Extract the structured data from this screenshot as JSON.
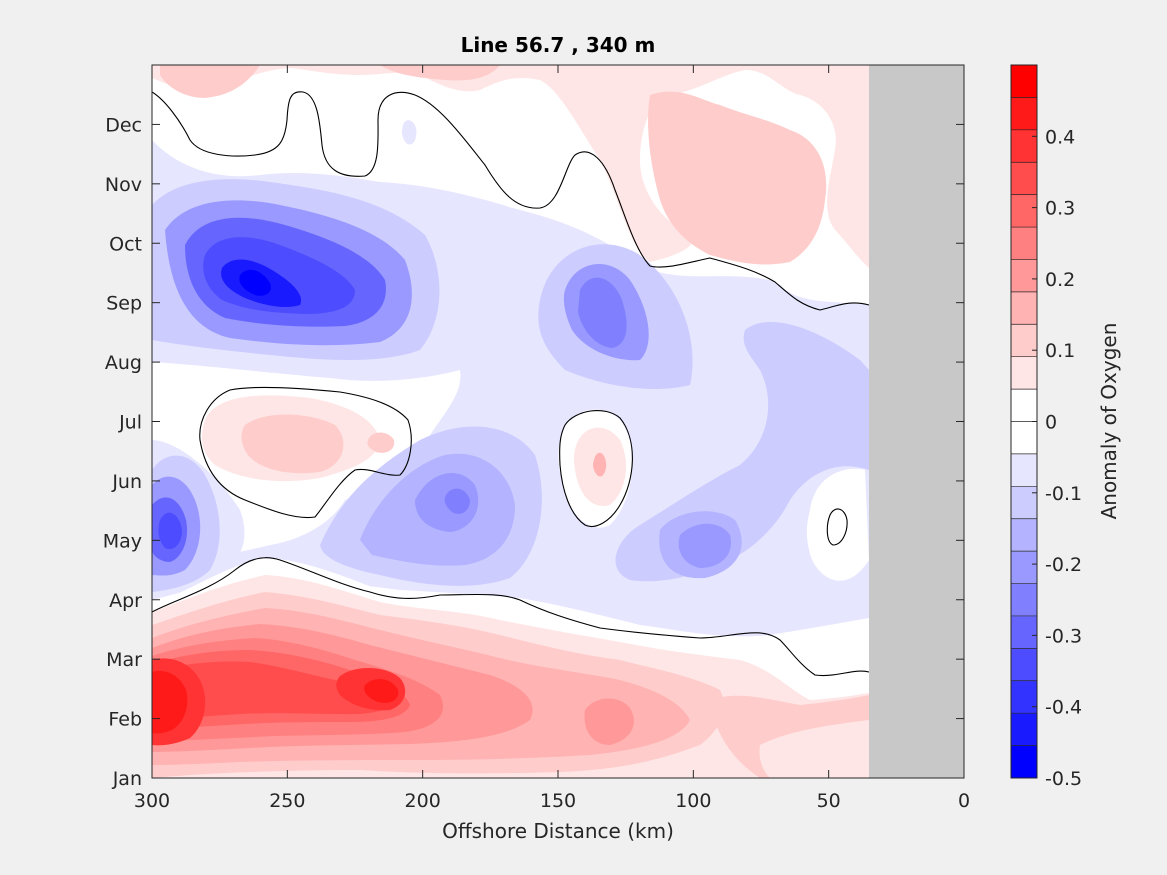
{
  "chart_data": {
    "type": "heatmap",
    "title": "Line 56.7 , 340 m",
    "xlabel": "Offshore Distance (km)",
    "ylabel": "",
    "xlim": [
      300,
      0
    ],
    "x_ticks": [
      "300",
      "250",
      "200",
      "150",
      "100",
      "50",
      "0"
    ],
    "x_tick_values": [
      300,
      250,
      200,
      150,
      100,
      50,
      0
    ],
    "y_categories": [
      "Jan",
      "Feb",
      "Mar",
      "Apr",
      "May",
      "Jun",
      "Jul",
      "Aug",
      "Sep",
      "Oct",
      "Nov",
      "Dec"
    ],
    "no_data_region_km": [
      35,
      0
    ],
    "no_data_color": "#c8c8c8",
    "colorbar": {
      "label": "Anomaly of Oxygen",
      "range": [
        -0.5,
        0.5
      ],
      "ticks": [
        "0.4",
        "0.3",
        "0.2",
        "0.1",
        "0",
        "-0.1",
        "-0.2",
        "-0.3",
        "-0.4",
        "-0.5"
      ],
      "tick_values": [
        0.4,
        0.3,
        0.2,
        0.1,
        0,
        -0.1,
        -0.2,
        -0.3,
        -0.4,
        -0.5
      ],
      "levels": 20,
      "colors": [
        "#0000ff",
        "#1a1aff",
        "#3333ff",
        "#4d4dff",
        "#6666ff",
        "#8080ff",
        "#9999ff",
        "#b3b3ff",
        "#ccccff",
        "#e6e6ff",
        "#ffffff",
        "#ffffff",
        "#ffe6e6",
        "#ffcccc",
        "#ffb3b3",
        "#ff9999",
        "#ff8080",
        "#ff6666",
        "#ff4d4d",
        "#ff3333",
        "#ff1a1a",
        "#ff0000"
      ]
    },
    "features": [
      {
        "name": "positive anomaly, winter (Jan-Mar)",
        "x_km": 290,
        "month": 2.0,
        "value": 0.48
      },
      {
        "name": "positive anomaly, winter (Jan-Mar)",
        "x_km": 215,
        "month": 2.3,
        "value": 0.42
      },
      {
        "name": "positive anomaly, winter (Jan-Mar)",
        "x_km": 135,
        "month": 2.0,
        "value": 0.22
      },
      {
        "name": "negative anomaly core, Sep-Oct",
        "x_km": 258,
        "month": 9.3,
        "value": -0.48
      },
      {
        "name": "negative anomaly core, Sep-Oct",
        "x_km": 232,
        "month": 9.0,
        "value": -0.4
      },
      {
        "name": "negative anomaly, Sep",
        "x_km": 140,
        "month": 8.9,
        "value": -0.28
      },
      {
        "name": "negative anomaly, May",
        "x_km": 292,
        "month": 5.0,
        "value": -0.33
      },
      {
        "name": "negative anomaly, Jun",
        "x_km": 185,
        "month": 5.7,
        "value": -0.25
      },
      {
        "name": "negative anomaly, May",
        "x_km": 100,
        "month": 4.9,
        "value": -0.22
      },
      {
        "name": "positive anomaly, Jul",
        "x_km": 250,
        "month": 6.7,
        "value": 0.12
      },
      {
        "name": "positive anomaly, Jun-Jul",
        "x_km": 135,
        "month": 6.3,
        "value": 0.12
      },
      {
        "name": "positive anomaly, Dec",
        "x_km": 80,
        "month": 11.4,
        "value": 0.15
      }
    ]
  }
}
